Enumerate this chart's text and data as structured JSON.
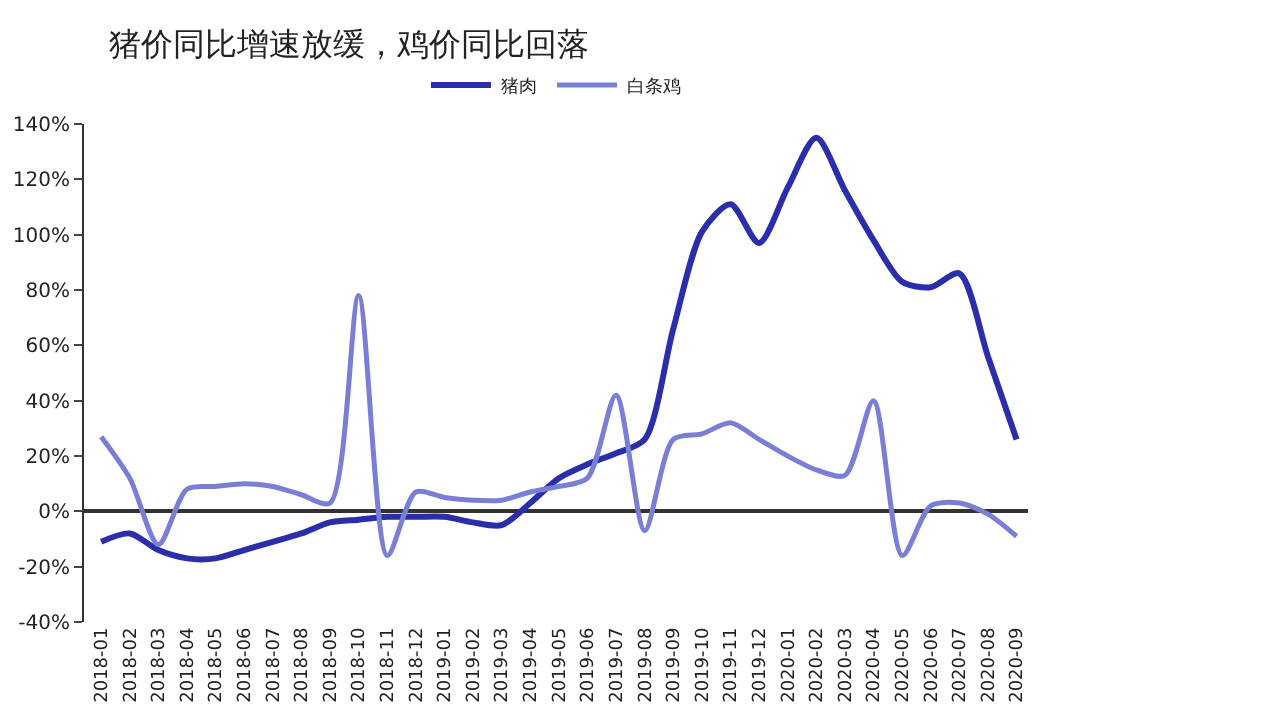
{
  "chart_data": {
    "type": "line",
    "title": "猪价同比增速放缓，鸡价同比回落",
    "categories": [
      "2018-01",
      "2018-02",
      "2018-03",
      "2018-04",
      "2018-05",
      "2018-06",
      "2018-07",
      "2018-08",
      "2018-09",
      "2018-10",
      "2018-11",
      "2018-12",
      "2019-01",
      "2019-02",
      "2019-03",
      "2019-04",
      "2019-05",
      "2019-06",
      "2019-07",
      "2019-08",
      "2019-09",
      "2019-10",
      "2019-11",
      "2019-12",
      "2020-01",
      "2020-02",
      "2020-03",
      "2020-04",
      "2020-05",
      "2020-06",
      "2020-07",
      "2020-08",
      "2020-09"
    ],
    "series": [
      {
        "name": "猪肉",
        "color": "#2a2eaa",
        "values": [
          -11,
          -8,
          -14,
          -17,
          -17,
          -14,
          -11,
          -8,
          -4,
          -3,
          -2,
          -2,
          -2,
          -4,
          -5,
          3,
          12,
          17,
          21,
          26,
          66,
          101,
          111,
          97,
          117,
          135,
          116,
          98,
          83,
          81,
          86,
          56,
          26
        ]
      },
      {
        "name": "白条鸡",
        "color": "#7a7fd6",
        "values": [
          27,
          12,
          -12,
          8,
          9,
          10,
          9,
          6,
          3,
          78,
          -16,
          7,
          5,
          4,
          4,
          7,
          9,
          12,
          42,
          -7,
          26,
          28,
          32,
          26,
          20,
          15,
          13,
          40,
          -16,
          2,
          3,
          -1,
          -9
        ]
      }
    ],
    "ylim": [
      -40,
      140
    ],
    "yticks": [
      {
        "value": -40,
        "label": "-40%"
      },
      {
        "value": -20,
        "label": "-20%"
      },
      {
        "value": 0,
        "label": "0%"
      },
      {
        "value": 20,
        "label": "20%"
      },
      {
        "value": 40,
        "label": "40%"
      },
      {
        "value": 60,
        "label": "60%"
      },
      {
        "value": 80,
        "label": "80%"
      },
      {
        "value": 100,
        "label": "100%"
      },
      {
        "value": 120,
        "label": "120%"
      },
      {
        "value": 140,
        "label": "140%"
      }
    ],
    "legend": "top",
    "marker": "none",
    "line_style": "solid"
  }
}
